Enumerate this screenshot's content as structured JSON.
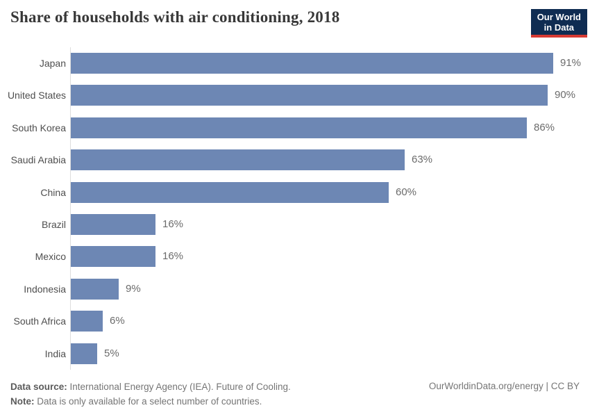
{
  "header": {
    "title": "Share of households with air conditioning, 2018",
    "logo": {
      "line1": "Our World",
      "line2": "in Data"
    }
  },
  "chart_data": {
    "type": "bar",
    "orientation": "horizontal",
    "title": "Share of households with air conditioning, 2018",
    "categories": [
      "Japan",
      "United States",
      "South Korea",
      "Saudi Arabia",
      "China",
      "Brazil",
      "Mexico",
      "Indonesia",
      "South Africa",
      "India"
    ],
    "values": [
      91,
      90,
      86,
      63,
      60,
      16,
      16,
      9,
      6,
      5
    ],
    "value_labels": [
      "91%",
      "90%",
      "86%",
      "63%",
      "60%",
      "16%",
      "16%",
      "9%",
      "6%",
      "5%"
    ],
    "xlabel": "",
    "ylabel": "",
    "xlim": [
      0,
      100
    ],
    "grid": false,
    "legend": "none",
    "bar_color": "#6d87b4"
  },
  "footer": {
    "source_label": "Data source:",
    "source_text": " International Energy Agency (IEA). Future of Cooling.",
    "note_label": "Note:",
    "note_text": " Data is only available for a select number of countries.",
    "credit": "OurWorldinData.org/energy | CC BY"
  },
  "colors": {
    "bar": "#6d87b4",
    "logo_navy": "#0f2c52",
    "logo_red": "#d73a33",
    "axis": "#dddddd",
    "title_text": "#383838",
    "label_text": "#4e4e4e",
    "value_text": "#6b6b6b",
    "footer_text": "#757575"
  }
}
